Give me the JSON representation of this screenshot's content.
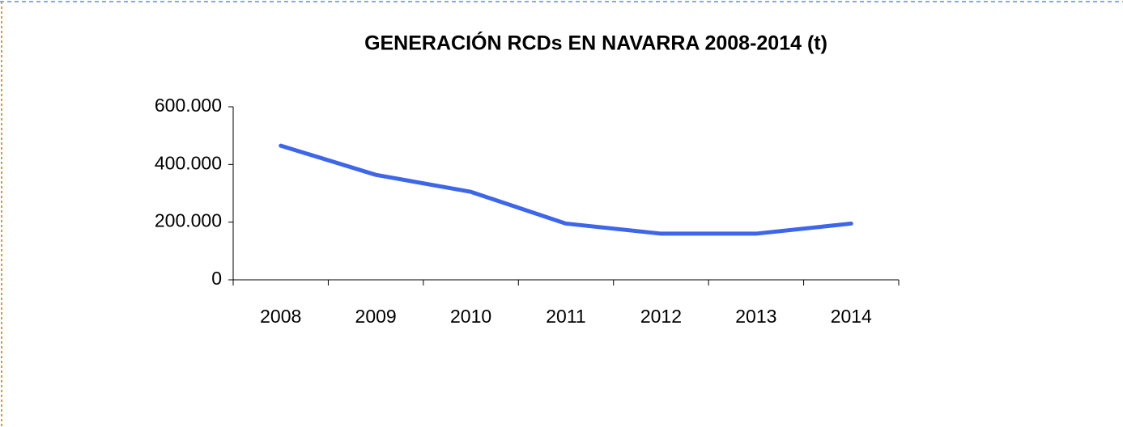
{
  "chart_data": {
    "type": "line",
    "title": "GENERACIÓN RCDs EN NAVARRA 2008-2014 (t)",
    "categories": [
      "2008",
      "2009",
      "2010",
      "2011",
      "2012",
      "2013",
      "2014"
    ],
    "series": [
      {
        "name": "RCDs",
        "color": "#3d66e8",
        "values": [
          465000,
          364000,
          305000,
          195000,
          160000,
          160000,
          195000
        ]
      }
    ],
    "ylim": [
      0,
      600000
    ],
    "yticks": [
      0,
      {
        "value": 200000,
        "label": "200.000"
      },
      {
        "value": 400000,
        "label": "400.000"
      },
      {
        "value": 600000,
        "label": "600.000"
      }
    ],
    "grid": false,
    "legend": false
  }
}
